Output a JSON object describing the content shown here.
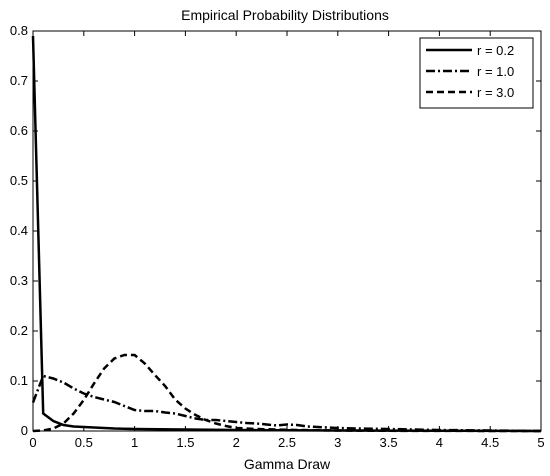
{
  "chart_data": {
    "type": "line",
    "title": "Empirical Probability Distributions",
    "xlabel": "Gamma Draw",
    "ylabel": "",
    "xlim": [
      0,
      5
    ],
    "ylim": [
      0,
      0.8
    ],
    "xticks": [
      "0",
      "0.5",
      "1",
      "1.5",
      "2",
      "2.5",
      "3",
      "3.5",
      "4",
      "4.5",
      "5"
    ],
    "yticks": [
      "0",
      "0.1",
      "0.2",
      "0.3",
      "0.4",
      "0.5",
      "0.6",
      "0.7",
      "0.8"
    ],
    "grid": false,
    "legend_position": "top-right",
    "series": [
      {
        "name": "r = 0.2",
        "style": "solid",
        "color": "#000000",
        "x": [
          0,
          0.1,
          0.2,
          0.3,
          0.4,
          0.6,
          0.8,
          1.0,
          1.5,
          2.0,
          3.0,
          5.0
        ],
        "y": [
          0.79,
          0.035,
          0.02,
          0.012,
          0.009,
          0.007,
          0.005,
          0.004,
          0.003,
          0.002,
          0.001,
          0.0
        ]
      },
      {
        "name": "r = 1.0",
        "style": "dashdot",
        "color": "#000000",
        "x": [
          0,
          0.1,
          0.2,
          0.3,
          0.4,
          0.5,
          0.6,
          0.7,
          0.8,
          0.9,
          1.0,
          1.1,
          1.2,
          1.3,
          1.4,
          1.5,
          1.6,
          1.7,
          1.8,
          1.9,
          2.0,
          2.1,
          2.2,
          2.3,
          2.4,
          2.5,
          2.6,
          2.7,
          2.8,
          3.0,
          3.2,
          3.5,
          4.0,
          4.5,
          5.0
        ],
        "y": [
          0.057,
          0.11,
          0.105,
          0.097,
          0.085,
          0.075,
          0.068,
          0.063,
          0.058,
          0.05,
          0.042,
          0.04,
          0.04,
          0.037,
          0.035,
          0.03,
          0.025,
          0.022,
          0.022,
          0.02,
          0.018,
          0.016,
          0.015,
          0.013,
          0.011,
          0.013,
          0.012,
          0.009,
          0.008,
          0.006,
          0.005,
          0.004,
          0.002,
          0.001,
          0.0
        ]
      },
      {
        "name": "r = 3.0",
        "style": "dashed",
        "color": "#000000",
        "x": [
          0,
          0.1,
          0.2,
          0.3,
          0.4,
          0.5,
          0.6,
          0.7,
          0.8,
          0.9,
          1.0,
          1.1,
          1.2,
          1.3,
          1.4,
          1.5,
          1.6,
          1.7,
          1.8,
          1.9,
          2.0,
          2.1,
          2.2,
          2.4,
          2.6,
          3.0,
          3.5,
          4.0,
          5.0
        ],
        "y": [
          0.0,
          0.001,
          0.005,
          0.015,
          0.035,
          0.062,
          0.095,
          0.125,
          0.145,
          0.152,
          0.152,
          0.135,
          0.112,
          0.09,
          0.063,
          0.045,
          0.032,
          0.022,
          0.015,
          0.01,
          0.006,
          0.005,
          0.004,
          0.003,
          0.002,
          0.001,
          0.0005,
          0.0002,
          0.0
        ]
      }
    ]
  }
}
